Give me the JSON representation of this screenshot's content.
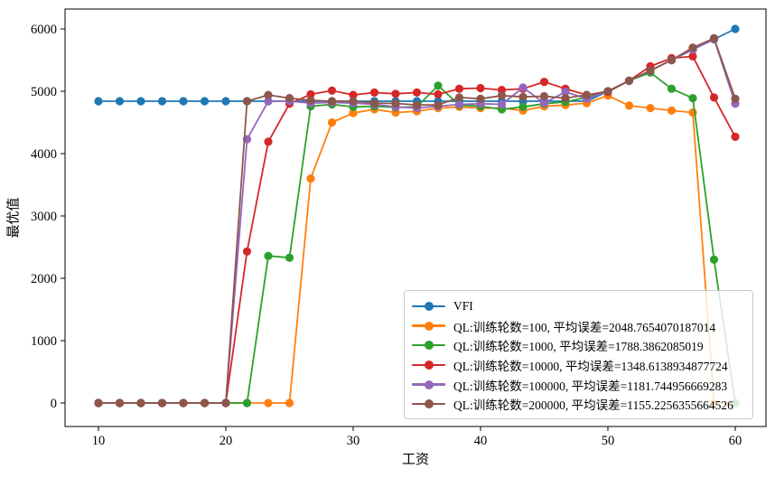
{
  "chart_data": {
    "type": "line",
    "xlabel": "工资",
    "ylabel": "最优值",
    "xticks": [
      10,
      20,
      30,
      40,
      50,
      60
    ],
    "yticks": [
      0,
      1000,
      2000,
      3000,
      4000,
      5000,
      6000
    ],
    "xlim": [
      7.4,
      62.4
    ],
    "ylim": [
      -380,
      6320
    ],
    "grid": false,
    "legend_position": "lower right",
    "marker": "circle",
    "x": [
      10,
      11.67,
      13.33,
      15,
      16.67,
      18.33,
      20,
      21.67,
      23.33,
      25,
      26.67,
      28.33,
      30,
      31.67,
      33.33,
      35,
      36.67,
      38.33,
      40,
      41.67,
      43.33,
      45,
      46.67,
      48.33,
      50,
      51.67,
      53.33,
      55,
      56.67,
      58.33,
      60
    ],
    "series": [
      {
        "name": "VFI",
        "color": "#1f77b4",
        "values": [
          4840,
          4840,
          4840,
          4840,
          4840,
          4840,
          4840,
          4840,
          4840,
          4840,
          4840,
          4840,
          4840,
          4840,
          4840,
          4840,
          4840,
          4840,
          4840,
          4840,
          4840,
          4840,
          4840,
          4840,
          5000,
          5167,
          5333,
          5500,
          5667,
          5833,
          6000
        ]
      },
      {
        "name": "QL:训练轮数=100, 平均误差=2048.7654070187014",
        "color": "#ff7f0e",
        "values": [
          0,
          0,
          0,
          0,
          0,
          0,
          0,
          0,
          0,
          0,
          3600,
          4500,
          4650,
          4710,
          4660,
          4680,
          4730,
          4750,
          4730,
          4730,
          4690,
          4760,
          4780,
          4810,
          4930,
          4770,
          4730,
          4690,
          4660,
          0,
          0
        ]
      },
      {
        "name": "QL:训练轮数=1000, 平均误差=1788.3862085019",
        "color": "#2ca02c",
        "values": [
          0,
          0,
          0,
          0,
          0,
          0,
          0,
          0,
          2360,
          2330,
          4760,
          4790,
          4750,
          4760,
          4740,
          4750,
          5090,
          4780,
          4760,
          4710,
          4750,
          4800,
          4830,
          4900,
          5000,
          5170,
          5300,
          5040,
          4890,
          2300,
          0
        ]
      },
      {
        "name": "QL:训练轮数=10000, 平均误差=1348.6138934877724",
        "color": "#d62728",
        "values": [
          0,
          0,
          0,
          0,
          0,
          0,
          0,
          2430,
          4190,
          4800,
          4950,
          5010,
          4940,
          4980,
          4960,
          4980,
          4950,
          5040,
          5050,
          5020,
          5040,
          5150,
          5040,
          4940,
          4990,
          5170,
          5400,
          5530,
          5560,
          4900,
          4270
        ]
      },
      {
        "name": "QL:训练轮数=100000, 平均误差=1181.744956669283",
        "color": "#9467bd",
        "values": [
          0,
          0,
          0,
          0,
          0,
          0,
          0,
          4230,
          4840,
          4840,
          4810,
          4820,
          4810,
          4790,
          4750,
          4730,
          4760,
          4790,
          4800,
          4790,
          5060,
          4810,
          4990,
          4880,
          5000,
          5170,
          5330,
          5500,
          5670,
          5840,
          4800
        ]
      },
      {
        "name": "QL:训练轮数=200000, 平均误差=1155.2256355664526",
        "color": "#8c564b",
        "values": [
          0,
          0,
          0,
          0,
          0,
          0,
          0,
          4840,
          4940,
          4890,
          4855,
          4840,
          4840,
          4810,
          4805,
          4780,
          4780,
          4900,
          4880,
          4930,
          4910,
          4920,
          4890,
          4940,
          5000,
          5170,
          5330,
          5500,
          5700,
          5850,
          4880
        ]
      }
    ]
  }
}
